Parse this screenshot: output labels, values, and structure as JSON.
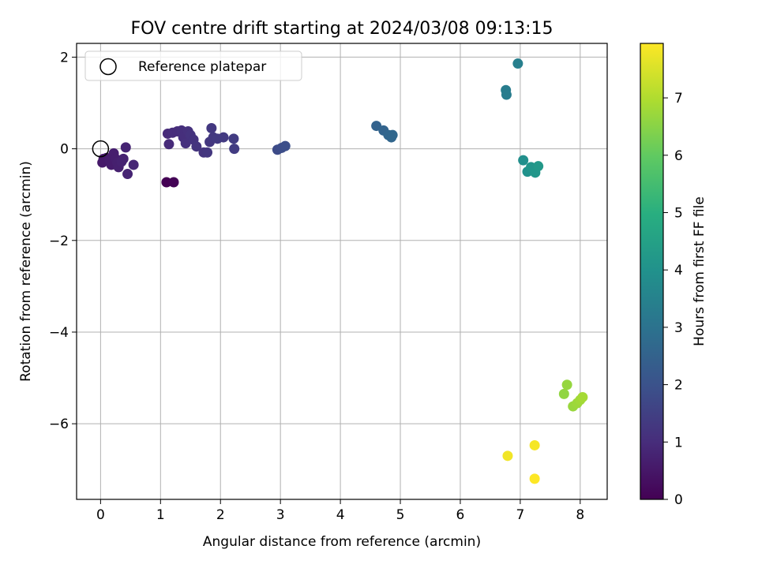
{
  "chart_data": {
    "type": "scatter",
    "title": "FOV centre drift starting at 2024/03/08 09:13:15",
    "xlabel": "Angular distance from reference (arcmin)",
    "ylabel": "Rotation from reference (arcmin)",
    "xlim": [
      -0.4,
      8.45
    ],
    "ylim": [
      -7.65,
      2.3
    ],
    "xticks": [
      0,
      1,
      2,
      3,
      4,
      5,
      6,
      7,
      8
    ],
    "yticks": [
      2,
      0,
      -2,
      -4,
      -6
    ],
    "ytick_labels": [
      "2",
      "0",
      "−2",
      "−4",
      "−6"
    ],
    "grid": true,
    "legend": {
      "placement": "top-left",
      "entries": [
        "Reference platepar"
      ]
    },
    "reference_point": {
      "x": 0,
      "y": 0
    },
    "colorbar": {
      "label": "Hours from first FF file",
      "range": [
        0,
        7.95
      ],
      "ticks": [
        0,
        1,
        2,
        3,
        4,
        5,
        6,
        7
      ],
      "colormap": "viridis"
    },
    "points": [
      {
        "x": 1.1,
        "y": -0.73,
        "c": 0.0
      },
      {
        "x": 1.22,
        "y": -0.73,
        "c": 0.05
      },
      {
        "x": 0.05,
        "y": -0.22,
        "c": 0.5
      },
      {
        "x": 0.1,
        "y": -0.2,
        "c": 0.55
      },
      {
        "x": 0.03,
        "y": -0.3,
        "c": 0.55
      },
      {
        "x": 0.15,
        "y": -0.25,
        "c": 0.6
      },
      {
        "x": 0.18,
        "y": -0.35,
        "c": 0.6
      },
      {
        "x": 0.22,
        "y": -0.1,
        "c": 0.65
      },
      {
        "x": 0.25,
        "y": -0.22,
        "c": 0.65
      },
      {
        "x": 0.28,
        "y": -0.3,
        "c": 0.7
      },
      {
        "x": 0.3,
        "y": -0.4,
        "c": 0.7
      },
      {
        "x": 0.35,
        "y": -0.28,
        "c": 0.75
      },
      {
        "x": 0.38,
        "y": -0.22,
        "c": 0.75
      },
      {
        "x": 0.42,
        "y": 0.03,
        "c": 0.8
      },
      {
        "x": 0.45,
        "y": -0.55,
        "c": 0.8
      },
      {
        "x": 0.55,
        "y": -0.35,
        "c": 0.85
      },
      {
        "x": 1.12,
        "y": 0.33,
        "c": 0.95
      },
      {
        "x": 1.14,
        "y": 0.1,
        "c": 0.95
      },
      {
        "x": 1.2,
        "y": 0.35,
        "c": 1.0
      },
      {
        "x": 1.28,
        "y": 0.38,
        "c": 1.0
      },
      {
        "x": 1.35,
        "y": 0.4,
        "c": 1.05
      },
      {
        "x": 1.38,
        "y": 0.25,
        "c": 1.05
      },
      {
        "x": 1.42,
        "y": 0.12,
        "c": 1.1
      },
      {
        "x": 1.46,
        "y": 0.38,
        "c": 1.1
      },
      {
        "x": 1.5,
        "y": 0.3,
        "c": 1.15
      },
      {
        "x": 1.55,
        "y": 0.2,
        "c": 1.15
      },
      {
        "x": 1.6,
        "y": 0.05,
        "c": 1.2
      },
      {
        "x": 1.72,
        "y": -0.08,
        "c": 1.2
      },
      {
        "x": 1.78,
        "y": -0.08,
        "c": 1.25
      },
      {
        "x": 1.82,
        "y": 0.15,
        "c": 1.25
      },
      {
        "x": 1.85,
        "y": 0.45,
        "c": 1.3
      },
      {
        "x": 1.88,
        "y": 0.25,
        "c": 1.3
      },
      {
        "x": 1.95,
        "y": 0.22,
        "c": 1.35
      },
      {
        "x": 2.05,
        "y": 0.25,
        "c": 1.35
      },
      {
        "x": 2.22,
        "y": 0.22,
        "c": 1.4
      },
      {
        "x": 2.23,
        "y": 0.0,
        "c": 1.4
      },
      {
        "x": 2.95,
        "y": -0.02,
        "c": 1.8
      },
      {
        "x": 3.02,
        "y": 0.02,
        "c": 1.85
      },
      {
        "x": 3.08,
        "y": 0.06,
        "c": 1.9
      },
      {
        "x": 4.6,
        "y": 0.5,
        "c": 2.5
      },
      {
        "x": 4.72,
        "y": 0.4,
        "c": 2.55
      },
      {
        "x": 4.8,
        "y": 0.3,
        "c": 2.6
      },
      {
        "x": 4.85,
        "y": 0.25,
        "c": 2.6
      },
      {
        "x": 4.87,
        "y": 0.3,
        "c": 2.65
      },
      {
        "x": 6.76,
        "y": 1.28,
        "c": 3.3
      },
      {
        "x": 6.77,
        "y": 1.18,
        "c": 3.3
      },
      {
        "x": 6.96,
        "y": 1.86,
        "c": 3.4
      },
      {
        "x": 7.05,
        "y": -0.25,
        "c": 3.9
      },
      {
        "x": 7.12,
        "y": -0.5,
        "c": 4.0
      },
      {
        "x": 7.18,
        "y": -0.4,
        "c": 4.1
      },
      {
        "x": 7.25,
        "y": -0.52,
        "c": 4.15
      },
      {
        "x": 7.3,
        "y": -0.38,
        "c": 4.2
      },
      {
        "x": 7.73,
        "y": -5.35,
        "c": 6.6
      },
      {
        "x": 7.78,
        "y": -5.15,
        "c": 6.65
      },
      {
        "x": 7.88,
        "y": -5.62,
        "c": 6.7
      },
      {
        "x": 7.95,
        "y": -5.55,
        "c": 6.75
      },
      {
        "x": 8.0,
        "y": -5.48,
        "c": 6.8
      },
      {
        "x": 8.04,
        "y": -5.42,
        "c": 6.85
      },
      {
        "x": 6.79,
        "y": -6.7,
        "c": 7.8
      },
      {
        "x": 7.24,
        "y": -6.47,
        "c": 7.85
      },
      {
        "x": 7.24,
        "y": -7.2,
        "c": 7.95
      }
    ]
  }
}
